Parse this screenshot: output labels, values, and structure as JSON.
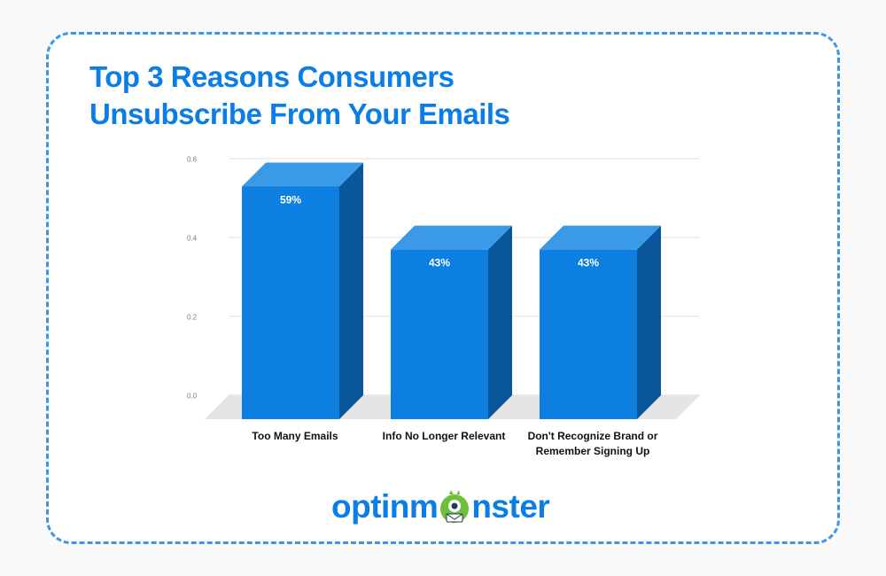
{
  "title": {
    "line1": "Top 3 Reasons Consumers",
    "line2": "Unsubscribe From Your Emails"
  },
  "logo": {
    "part1": "optinm",
    "part2": "nster"
  },
  "colors": {
    "accent": "#0a7ee6",
    "bar_front": "#0c7fe0",
    "bar_top": "#3a9ae8",
    "bar_side": "#0a569a",
    "floor": "#e4e4e4",
    "grid": "#e2e2e2",
    "border": "#3b97e3"
  },
  "chart_data": {
    "type": "bar",
    "categories": [
      [
        "Too Many Emails"
      ],
      [
        "Info No Longer Relevant"
      ],
      [
        "Don't Recognize Brand or",
        "Remember Signing Up"
      ]
    ],
    "values": [
      0.59,
      0.43,
      0.43
    ],
    "data_labels": [
      "59%",
      "43%",
      "43%"
    ],
    "yticks": [
      "0.0",
      "0.2",
      "0.4",
      "0.6"
    ],
    "ylim": [
      0,
      0.6
    ],
    "grid": true,
    "style": "3d"
  }
}
